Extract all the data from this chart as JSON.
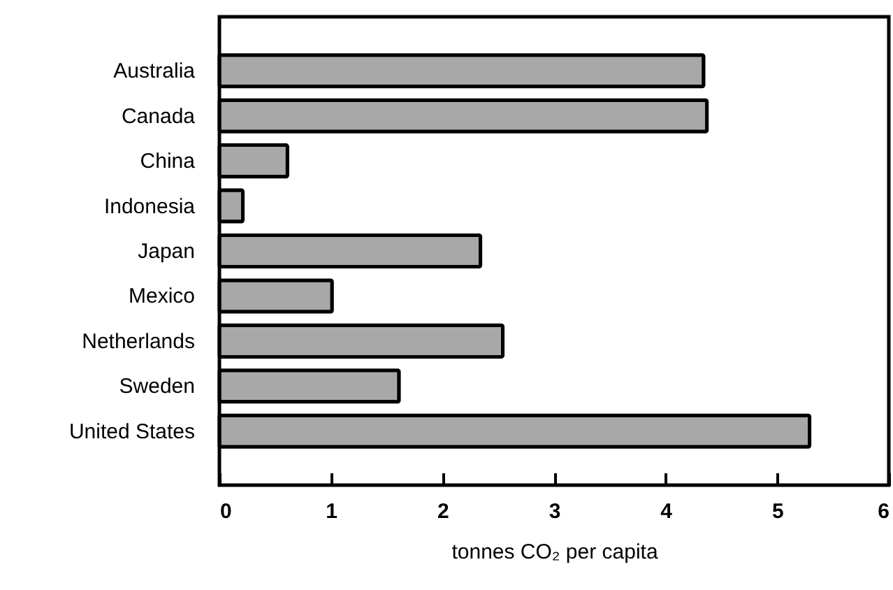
{
  "chart_data": {
    "type": "bar",
    "orientation": "horizontal",
    "xlabel": "tonnes CO₂ per capita",
    "categories": [
      "Australia",
      "Canada",
      "China",
      "Indonesia",
      "Japan",
      "Mexico",
      "Netherlands",
      "Sweden",
      "United States"
    ],
    "values": [
      4.34,
      4.37,
      0.61,
      0.21,
      2.34,
      1.01,
      2.54,
      1.61,
      5.29
    ],
    "color": "#a8a8a8",
    "xlim": [
      0,
      6
    ],
    "xticks": [
      0,
      1,
      2,
      3,
      4,
      5,
      6
    ],
    "grid": false
  }
}
